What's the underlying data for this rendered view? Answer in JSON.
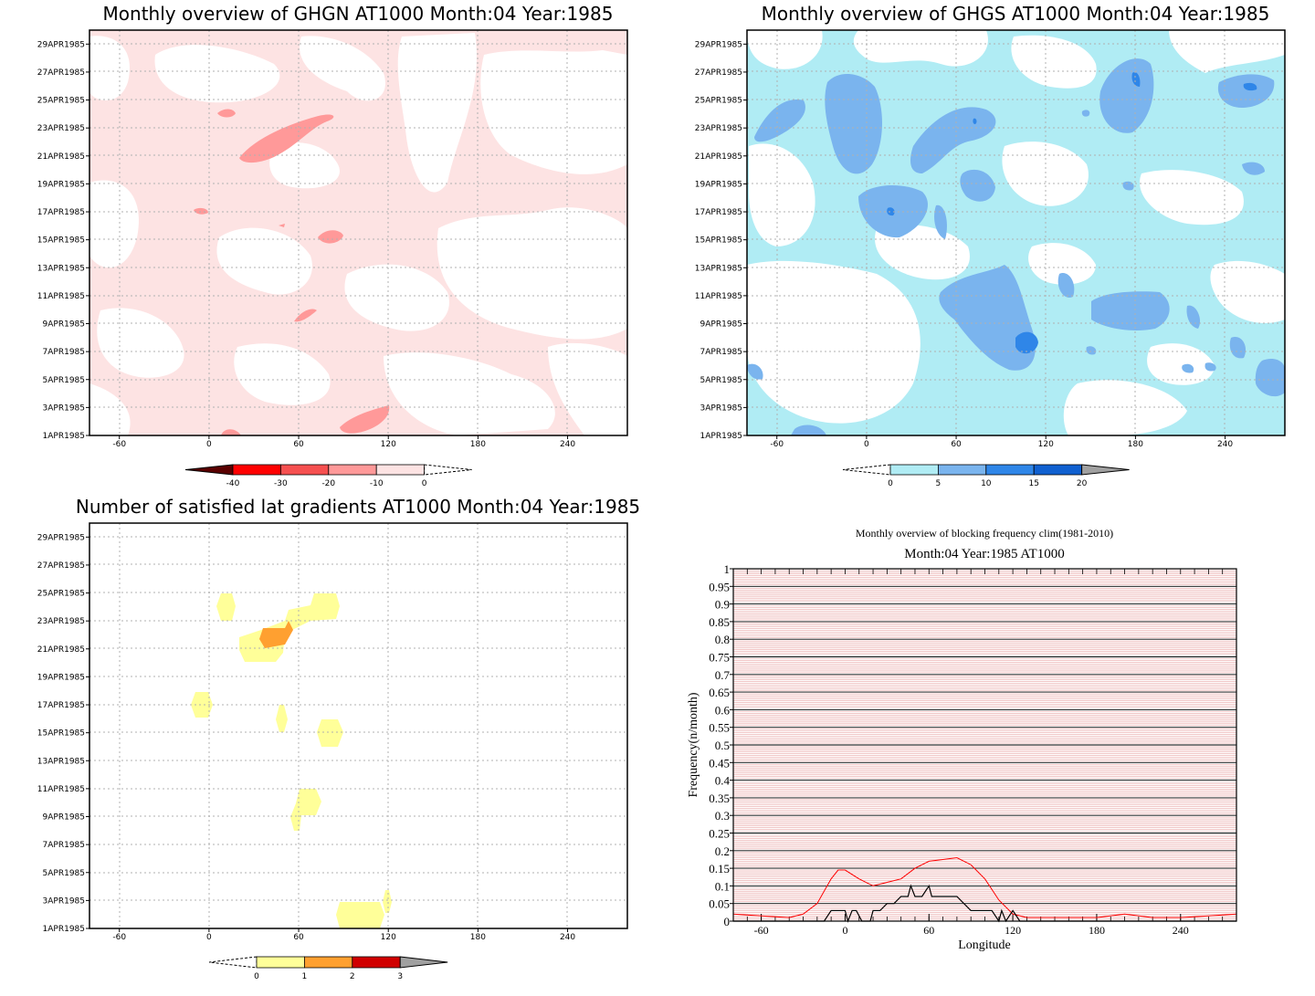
{
  "panels": {
    "ghgn": {
      "title": "Monthly overview of GHGN AT1000 Month:04 Year:1985",
      "colorbar": {
        "labels": [
          "-40",
          "-30",
          "-20",
          "-10",
          "0"
        ],
        "colors": [
          "#5a0000",
          "#ff0000",
          "#f65050",
          "#ff9999",
          "#fde3e3"
        ]
      }
    },
    "ghgs": {
      "title": "Monthly overview of GHGS AT1000 Month:04 Year:1985",
      "colorbar": {
        "labels": [
          "0",
          "5",
          "10",
          "15",
          "20"
        ],
        "colors": [
          "#b0ecf4",
          "#7ab4ee",
          "#2f86e8",
          "#1060d0",
          "#a0a0a0"
        ]
      }
    },
    "lat": {
      "title": "Number of satisfied lat gradients AT1000 Month:04 Year:1985",
      "colorbar": {
        "labels": [
          "0",
          "1",
          "2",
          "3"
        ],
        "colors": [
          "#ffff99",
          "#ffa030",
          "#d00000",
          "#a0a0a0"
        ]
      }
    },
    "blocking": {
      "title1": "Monthly overview of blocking frequency clim(1981-2010)",
      "title2": "Month:04 Year:1985  AT1000",
      "xlabel": "Longitude",
      "ylabel": "Frequency(n/month)"
    }
  },
  "shared_axes": {
    "x_ticks": [
      "-60",
      "0",
      "60",
      "120",
      "180",
      "240"
    ],
    "y_ticks": [
      "1APR1985",
      "3APR1985",
      "5APR1985",
      "7APR1985",
      "9APR1985",
      "11APR1985",
      "13APR1985",
      "15APR1985",
      "17APR1985",
      "19APR1985",
      "21APR1985",
      "23APR1985",
      "25APR1985",
      "27APR1985",
      "29APR1985"
    ]
  },
  "chart_data": [
    {
      "type": "heatmap",
      "title": "Monthly overview of GHGN AT1000 Month:04 Year:1985",
      "xlabel": "",
      "ylabel": "",
      "xlim": [
        -80,
        280
      ],
      "ylim": [
        "1APR1985",
        "30APR1985"
      ],
      "color_levels": [
        -40,
        -30,
        -20,
        -10,
        0
      ],
      "note_values": "field mostly between -10 and 0, small patches between -20 and -10"
    },
    {
      "type": "heatmap",
      "title": "Monthly overview of GHGS AT1000 Month:04 Year:1985",
      "xlabel": "",
      "ylabel": "",
      "xlim": [
        -80,
        280
      ],
      "ylim": [
        "1APR1985",
        "30APR1985"
      ],
      "color_levels": [
        0,
        5,
        10,
        15,
        20
      ]
    },
    {
      "type": "heatmap",
      "title": "Number of satisfied lat gradients AT1000 Month:04 Year:1985",
      "xlabel": "",
      "ylabel": "",
      "xlim": [
        -80,
        280
      ],
      "ylim": [
        "1APR1985",
        "30APR1985"
      ],
      "color_levels": [
        0,
        1,
        2,
        3
      ]
    },
    {
      "type": "line",
      "title": "Monthly overview of blocking frequency clim(1981-2010)",
      "subtitle": "Month:04 Year:1985  AT1000",
      "xlabel": "Longitude",
      "ylabel": "Frequency(n/month)",
      "xlim": [
        -80,
        280
      ],
      "ylim": [
        0,
        1
      ],
      "y_ticks": [
        "0",
        "0.05",
        "0.1",
        "0.15",
        "0.2",
        "0.25",
        "0.3",
        "0.35",
        "0.4",
        "0.45",
        "0.5",
        "0.55",
        "0.6",
        "0.65",
        "0.7",
        "0.75",
        "0.8",
        "0.85",
        "0.9",
        "0.95",
        "1"
      ],
      "x_ticks": [
        "-60",
        "0",
        "60",
        "120",
        "180",
        "240"
      ],
      "series": [
        {
          "color": "#ff0000",
          "x": [
            -80,
            -60,
            -40,
            -30,
            -20,
            -10,
            -5,
            0,
            10,
            20,
            30,
            40,
            50,
            60,
            70,
            80,
            90,
            100,
            110,
            120,
            130,
            140,
            160,
            180,
            200,
            220,
            240,
            260,
            280
          ],
          "y": [
            0.02,
            0.015,
            0.01,
            0.02,
            0.05,
            0.12,
            0.145,
            0.145,
            0.12,
            0.1,
            0.11,
            0.12,
            0.15,
            0.17,
            0.175,
            0.18,
            0.16,
            0.12,
            0.06,
            0.02,
            0.01,
            0.01,
            0.01,
            0.01,
            0.02,
            0.01,
            0.01,
            0.015,
            0.02
          ]
        },
        {
          "color": "#000000",
          "x": [
            -80,
            -15,
            -10,
            0,
            2,
            5,
            8,
            12,
            18,
            20,
            25,
            30,
            35,
            40,
            45,
            47,
            50,
            55,
            60,
            62,
            65,
            70,
            80,
            90,
            95,
            100,
            105,
            110,
            112,
            115,
            120,
            125,
            280
          ],
          "y": [
            0,
            0,
            0.03,
            0.03,
            0,
            0.03,
            0.03,
            0,
            0,
            0.03,
            0.03,
            0.05,
            0.05,
            0.07,
            0.07,
            0.1,
            0.07,
            0.07,
            0.1,
            0.07,
            0.07,
            0.07,
            0.07,
            0.03,
            0.03,
            0.03,
            0.03,
            0,
            0.03,
            0,
            0.03,
            0,
            0
          ]
        }
      ]
    }
  ]
}
